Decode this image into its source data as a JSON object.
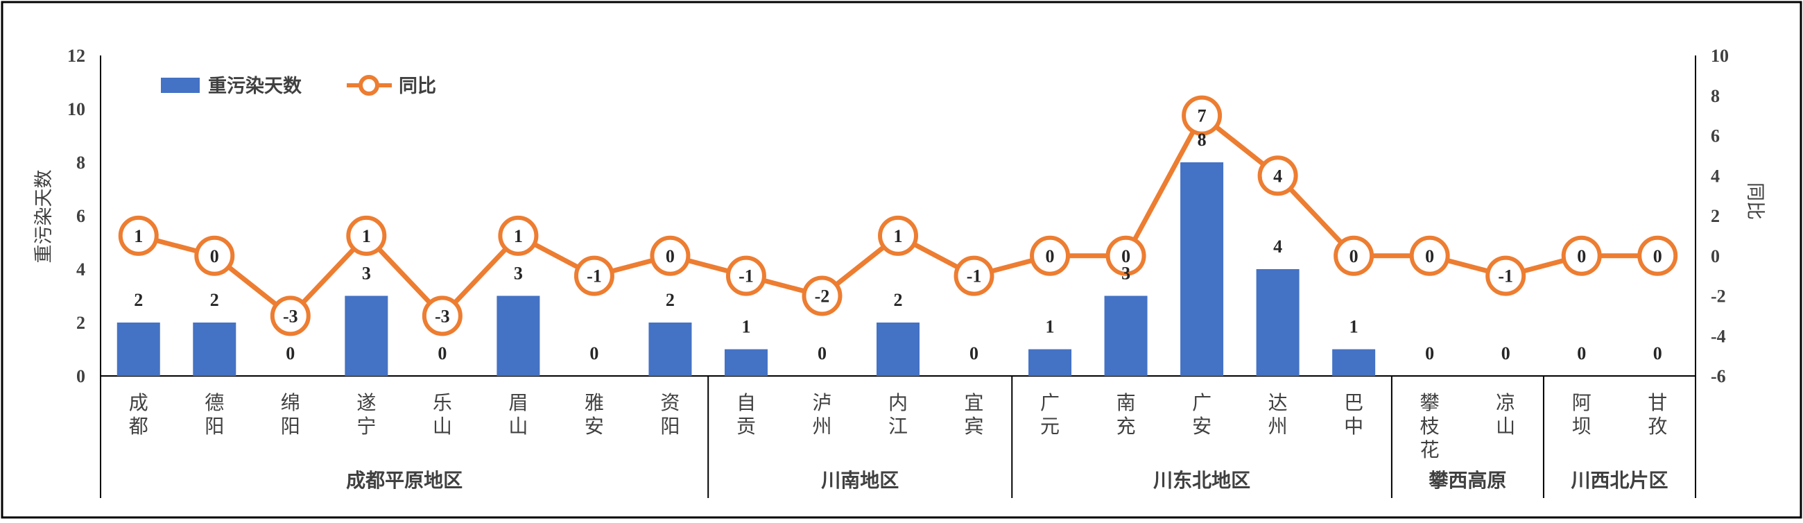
{
  "chart_data": {
    "type": "bar",
    "ylabel": "重污染天数",
    "y2label": "同比",
    "ylim": [
      0,
      12
    ],
    "y2lim": [
      -6,
      10
    ],
    "yticks": [
      "0",
      "2",
      "4",
      "6",
      "8",
      "10",
      "12"
    ],
    "y2ticks": [
      "-6",
      "-4",
      "-2",
      "0",
      "2",
      "4",
      "6",
      "8",
      "10"
    ],
    "legend": {
      "placement": "top-left",
      "bar_label": "重污染天数",
      "line_label": "同比"
    },
    "grid": false,
    "categories": [
      "成都",
      "德阳",
      "绵阳",
      "遂宁",
      "乐山",
      "眉山",
      "雅安",
      "资阳",
      "自贡",
      "泸州",
      "内江",
      "宜宾",
      "广元",
      "南充",
      "广安",
      "达州",
      "巴中",
      "攀枝花",
      "凉山",
      "阿坝",
      "甘孜"
    ],
    "series": [
      {
        "name": "重污染天数",
        "type": "bar",
        "axis": "left",
        "color": "#4472C4",
        "values": [
          2,
          2,
          0,
          3,
          0,
          3,
          0,
          2,
          1,
          0,
          2,
          0,
          1,
          3,
          8,
          4,
          1,
          0,
          0,
          0,
          0
        ]
      },
      {
        "name": "同比",
        "type": "line",
        "axis": "right",
        "color": "#ED7D31",
        "values": [
          1,
          0,
          -3,
          1,
          -3,
          1,
          -1,
          0,
          -1,
          -2,
          1,
          -1,
          0,
          0,
          7,
          4,
          0,
          0,
          -1,
          0,
          0
        ]
      }
    ],
    "groups": [
      {
        "label": "成都平原地区",
        "start": 0,
        "count": 8
      },
      {
        "label": "川南地区",
        "start": 8,
        "count": 4
      },
      {
        "label": "川东北地区",
        "start": 12,
        "count": 5
      },
      {
        "label": "攀西高原",
        "start": 17,
        "count": 2
      },
      {
        "label": "川西北片区",
        "start": 19,
        "count": 2
      }
    ]
  }
}
